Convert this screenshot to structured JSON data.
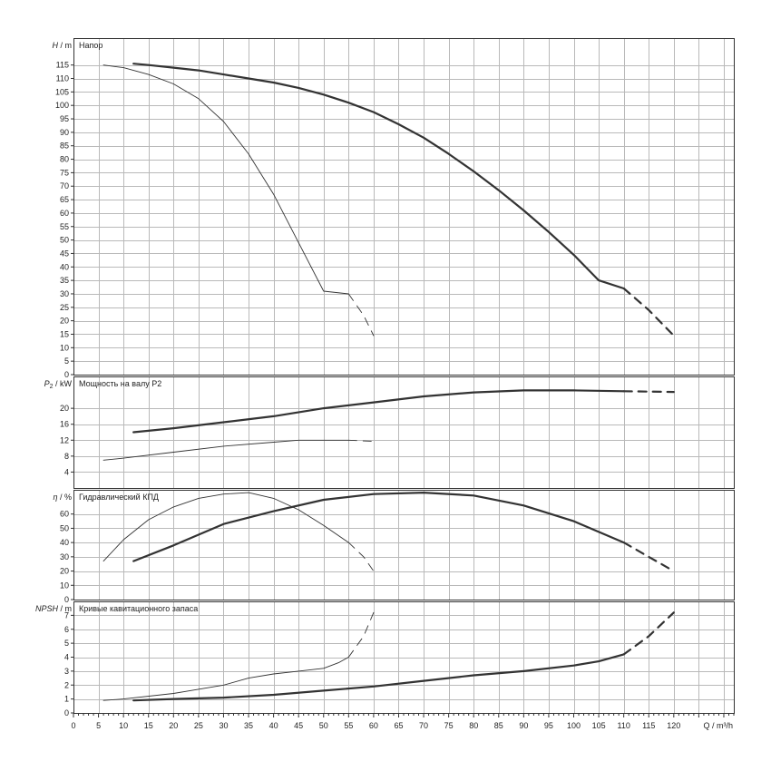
{
  "chart_data": [
    {
      "type": "line",
      "panel_title": "Напор",
      "ylabel_main": "H",
      "ylabel_unit": " / m",
      "ylim": [
        0,
        125
      ],
      "yticks": [
        0,
        5,
        10,
        15,
        20,
        25,
        30,
        35,
        40,
        45,
        50,
        55,
        60,
        65,
        70,
        75,
        80,
        85,
        90,
        95,
        100,
        105,
        110,
        115
      ],
      "series": [
        {
          "width": "thick",
          "solid": [
            [
              12,
              115.5
            ],
            [
              15,
              115
            ],
            [
              20,
              114
            ],
            [
              25,
              113
            ],
            [
              30,
              111.5
            ],
            [
              35,
              110
            ],
            [
              40,
              108.5
            ],
            [
              45,
              106.5
            ],
            [
              50,
              104
            ],
            [
              55,
              101
            ],
            [
              60,
              97.5
            ],
            [
              65,
              93
            ],
            [
              70,
              88
            ],
            [
              75,
              82
            ],
            [
              80,
              75.5
            ],
            [
              85,
              68.5
            ],
            [
              90,
              61
            ],
            [
              95,
              53
            ],
            [
              100,
              44.5
            ],
            [
              105,
              35
            ],
            [
              110,
              32
            ]
          ],
          "dashed": [
            [
              110,
              32
            ],
            [
              115,
              24
            ],
            [
              120,
              14.5
            ]
          ]
        },
        {
          "width": "thin",
          "solid": [
            [
              6,
              115
            ],
            [
              10,
              114
            ],
            [
              15,
              111.5
            ],
            [
              20,
              108
            ],
            [
              25,
              102.5
            ],
            [
              30,
              94
            ],
            [
              35,
              82
            ],
            [
              40,
              67
            ],
            [
              45,
              49
            ],
            [
              50,
              31
            ],
            [
              55,
              30
            ]
          ],
          "dashed": [
            [
              55,
              30
            ],
            [
              58,
              22
            ],
            [
              60,
              14.5
            ]
          ]
        }
      ]
    },
    {
      "type": "line",
      "panel_title": "Мощность на валу P2",
      "ylabel_main": "P",
      "ylabel_sub": "2",
      "ylabel_unit": " / kW",
      "ylim": [
        0,
        28
      ],
      "yticks": [
        4,
        8,
        12,
        16,
        20
      ],
      "series": [
        {
          "width": "thick",
          "solid": [
            [
              12,
              14
            ],
            [
              20,
              15
            ],
            [
              30,
              16.5
            ],
            [
              40,
              18
            ],
            [
              50,
              20
            ],
            [
              60,
              21.5
            ],
            [
              70,
              23
            ],
            [
              80,
              24
            ],
            [
              90,
              24.5
            ],
            [
              100,
              24.5
            ],
            [
              110,
              24.3
            ]
          ],
          "dashed": [
            [
              110,
              24.3
            ],
            [
              115,
              24.2
            ],
            [
              120,
              24.1
            ]
          ]
        },
        {
          "width": "thin",
          "solid": [
            [
              6,
              7
            ],
            [
              10,
              7.5
            ],
            [
              20,
              9
            ],
            [
              30,
              10.5
            ],
            [
              40,
              11.5
            ],
            [
              45,
              12
            ],
            [
              50,
              12
            ],
            [
              55,
              12
            ]
          ],
          "dashed": [
            [
              55,
              12
            ],
            [
              60,
              11.7
            ]
          ]
        }
      ]
    },
    {
      "type": "line",
      "panel_title": "Гидравлический КПД",
      "ylabel_main": "η",
      "ylabel_unit": " / %",
      "ylim": [
        0,
        77
      ],
      "yticks": [
        0,
        10,
        20,
        30,
        40,
        50,
        60
      ],
      "series": [
        {
          "width": "thick",
          "solid": [
            [
              12,
              27
            ],
            [
              20,
              38
            ],
            [
              30,
              53
            ],
            [
              40,
              62
            ],
            [
              50,
              70
            ],
            [
              60,
              74
            ],
            [
              70,
              75
            ],
            [
              80,
              73
            ],
            [
              90,
              66
            ],
            [
              100,
              55
            ],
            [
              110,
              40
            ]
          ],
          "dashed": [
            [
              110,
              40
            ],
            [
              115,
              30
            ],
            [
              120,
              20
            ]
          ]
        },
        {
          "width": "thin",
          "solid": [
            [
              6,
              27
            ],
            [
              10,
              42
            ],
            [
              15,
              56
            ],
            [
              20,
              65
            ],
            [
              25,
              71
            ],
            [
              30,
              74
            ],
            [
              35,
              75
            ],
            [
              40,
              71
            ],
            [
              45,
              63
            ],
            [
              50,
              52
            ],
            [
              55,
              40
            ]
          ],
          "dashed": [
            [
              55,
              40
            ],
            [
              58,
              30
            ],
            [
              60,
              20
            ]
          ]
        }
      ]
    },
    {
      "type": "line",
      "panel_title": "Кривые кавитационного запаса",
      "ylabel_main": "NPSH",
      "ylabel_unit": " / m",
      "ylim": [
        0,
        8
      ],
      "yticks": [
        0,
        1,
        2,
        3,
        4,
        5,
        6,
        7
      ],
      "series": [
        {
          "width": "thick",
          "solid": [
            [
              12,
              0.9
            ],
            [
              20,
              1.0
            ],
            [
              30,
              1.1
            ],
            [
              40,
              1.3
            ],
            [
              50,
              1.6
            ],
            [
              60,
              1.9
            ],
            [
              70,
              2.3
            ],
            [
              80,
              2.7
            ],
            [
              90,
              3.0
            ],
            [
              100,
              3.4
            ],
            [
              105,
              3.7
            ],
            [
              110,
              4.2
            ]
          ],
          "dashed": [
            [
              110,
              4.2
            ],
            [
              115,
              5.5
            ],
            [
              120,
              7.2
            ]
          ]
        },
        {
          "width": "thin",
          "solid": [
            [
              6,
              0.9
            ],
            [
              10,
              1.0
            ],
            [
              20,
              1.4
            ],
            [
              30,
              2.0
            ],
            [
              35,
              2.5
            ],
            [
              40,
              2.8
            ],
            [
              45,
              3.0
            ],
            [
              50,
              3.2
            ],
            [
              53,
              3.6
            ],
            [
              55,
              4.0
            ]
          ],
          "dashed": [
            [
              55,
              4.0
            ],
            [
              58,
              5.5
            ],
            [
              60,
              7.2
            ]
          ]
        }
      ]
    }
  ],
  "x_axis": {
    "label": "Q / m³/h",
    "xlim": [
      0,
      132
    ],
    "ticks": [
      0,
      5,
      10,
      15,
      20,
      25,
      30,
      35,
      40,
      45,
      50,
      55,
      60,
      65,
      70,
      75,
      80,
      85,
      90,
      95,
      100,
      105,
      110,
      115,
      120
    ]
  }
}
